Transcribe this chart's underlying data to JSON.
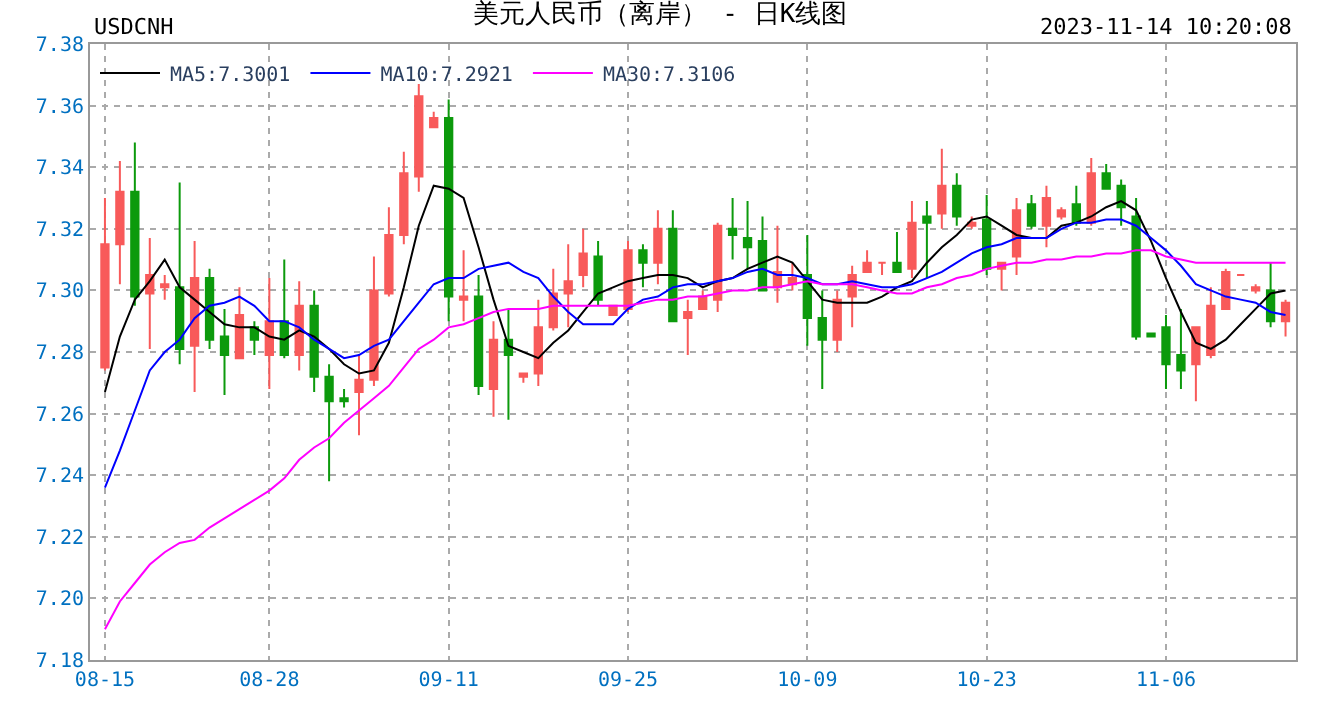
{
  "chart_data": {
    "type": "candlestick",
    "title": "美元人民币（离岸） - 日K线图",
    "annotations": [
      "USDCNH",
      "2023-11-14 10:20:08"
    ],
    "categories": [
      "08-15",
      null,
      null,
      null,
      null,
      null,
      null,
      null,
      null,
      null,
      null,
      "08-28",
      null,
      null,
      null,
      null,
      null,
      null,
      null,
      null,
      null,
      null,
      null,
      "09-11",
      null,
      null,
      null,
      null,
      null,
      null,
      null,
      null,
      null,
      null,
      null,
      "09-25",
      null,
      null,
      null,
      null,
      null,
      null,
      null,
      null,
      null,
      null,
      null,
      "10-09",
      null,
      null,
      null,
      null,
      null,
      null,
      null,
      null,
      null,
      null,
      null,
      "10-23",
      null,
      null,
      null,
      null,
      null,
      null,
      null,
      null,
      null,
      null,
      null,
      "11-06",
      null,
      null,
      null,
      null,
      null,
      null,
      null,
      null
    ],
    "ohlc": [
      [
        7.275,
        7.33,
        7.274,
        7.315
      ],
      [
        7.315,
        7.342,
        7.302,
        7.332
      ],
      [
        7.332,
        7.348,
        7.295,
        7.298
      ],
      [
        7.299,
        7.317,
        7.281,
        7.305
      ],
      [
        7.301,
        7.305,
        7.297,
        7.302
      ],
      [
        7.301,
        7.335,
        7.276,
        7.281
      ],
      [
        7.282,
        7.316,
        7.267,
        7.304
      ],
      [
        7.304,
        7.307,
        7.281,
        7.284
      ],
      [
        7.285,
        7.294,
        7.266,
        7.279
      ],
      [
        7.278,
        7.301,
        7.278,
        7.292
      ],
      [
        7.288,
        7.29,
        7.279,
        7.284
      ],
      [
        7.279,
        7.304,
        7.268,
        7.29
      ],
      [
        7.29,
        7.31,
        7.278,
        7.279
      ],
      [
        7.279,
        7.303,
        7.274,
        7.295
      ],
      [
        7.295,
        7.3,
        7.267,
        7.272
      ],
      [
        7.272,
        7.276,
        7.238,
        7.264
      ],
      [
        7.265,
        7.268,
        7.262,
        7.264
      ],
      [
        7.267,
        7.279,
        7.253,
        7.271
      ],
      [
        7.271,
        7.311,
        7.269,
        7.3
      ],
      [
        7.299,
        7.327,
        7.298,
        7.318
      ],
      [
        7.318,
        7.345,
        7.315,
        7.338
      ],
      [
        7.337,
        7.367,
        7.332,
        7.363
      ],
      [
        7.353,
        7.358,
        7.353,
        7.356
      ],
      [
        7.356,
        7.362,
        7.29,
        7.298
      ],
      [
        7.297,
        7.313,
        7.29,
        7.298
      ],
      [
        7.298,
        7.305,
        7.266,
        7.269
      ],
      [
        7.268,
        7.29,
        7.259,
        7.284
      ],
      [
        7.284,
        7.294,
        7.258,
        7.279
      ],
      [
        7.272,
        7.273,
        7.27,
        7.273
      ],
      [
        7.273,
        7.297,
        7.269,
        7.288
      ],
      [
        7.288,
        7.307,
        7.287,
        7.299
      ],
      [
        7.299,
        7.315,
        7.288,
        7.303
      ],
      [
        7.305,
        7.32,
        7.301,
        7.312
      ],
      [
        7.311,
        7.316,
        7.295,
        7.297
      ],
      [
        7.292,
        7.295,
        7.292,
        7.295
      ],
      [
        7.294,
        7.316,
        7.293,
        7.313
      ],
      [
        7.313,
        7.315,
        7.301,
        7.309
      ],
      [
        7.309,
        7.326,
        7.302,
        7.32
      ],
      [
        7.32,
        7.326,
        7.29,
        7.29
      ],
      [
        7.291,
        7.297,
        7.279,
        7.293
      ],
      [
        7.294,
        7.3,
        7.294,
        7.298
      ],
      [
        7.297,
        7.322,
        7.293,
        7.321
      ],
      [
        7.32,
        7.33,
        7.31,
        7.318
      ],
      [
        7.317,
        7.329,
        7.307,
        7.314
      ],
      [
        7.316,
        7.324,
        7.3,
        7.3
      ],
      [
        7.301,
        7.321,
        7.296,
        7.306
      ],
      [
        7.302,
        7.309,
        7.3,
        7.304
      ],
      [
        7.305,
        7.318,
        7.282,
        7.291
      ],
      [
        7.291,
        7.3,
        7.268,
        7.284
      ],
      [
        7.284,
        7.3,
        7.28,
        7.297
      ],
      [
        7.298,
        7.308,
        7.288,
        7.305
      ],
      [
        7.306,
        7.313,
        7.306,
        7.309
      ],
      [
        7.309,
        7.309,
        7.305,
        7.309
      ],
      [
        7.309,
        7.319,
        7.306,
        7.306
      ],
      [
        7.307,
        7.329,
        7.304,
        7.322
      ],
      [
        7.324,
        7.329,
        7.304,
        7.322
      ],
      [
        7.325,
        7.346,
        7.32,
        7.334
      ],
      [
        7.334,
        7.338,
        7.321,
        7.324
      ],
      [
        7.321,
        7.324,
        7.32,
        7.322
      ],
      [
        7.323,
        7.331,
        7.305,
        7.307
      ],
      [
        7.307,
        7.309,
        7.3,
        7.309
      ],
      [
        7.311,
        7.33,
        7.305,
        7.326
      ],
      [
        7.328,
        7.331,
        7.32,
        7.321
      ],
      [
        7.321,
        7.334,
        7.314,
        7.33
      ],
      [
        7.324,
        7.327,
        7.323,
        7.326
      ],
      [
        7.328,
        7.334,
        7.321,
        7.322
      ],
      [
        7.322,
        7.343,
        7.321,
        7.338
      ],
      [
        7.338,
        7.341,
        7.333,
        7.333
      ],
      [
        7.334,
        7.336,
        7.321,
        7.327
      ],
      [
        7.324,
        7.33,
        7.284,
        7.285
      ],
      [
        7.286,
        7.286,
        7.285,
        7.285
      ],
      [
        7.288,
        7.292,
        7.268,
        7.276
      ],
      [
        7.279,
        7.294,
        7.268,
        7.274
      ],
      [
        7.276,
        7.288,
        7.264,
        7.288
      ],
      [
        7.279,
        7.301,
        7.278,
        7.295
      ],
      [
        7.294,
        7.307,
        7.294,
        7.306
      ],
      [
        7.305,
        7.305,
        7.305,
        7.305
      ],
      [
        7.3,
        7.302,
        7.299,
        7.301
      ],
      [
        7.3,
        7.309,
        7.288,
        7.29
      ],
      [
        7.29,
        7.297,
        7.285,
        7.296
      ]
    ],
    "colors": [
      "#f85a5a",
      "#f85a5a",
      "#0c9a0c",
      "#f85a5a",
      "#f85a5a",
      "#0c9a0c",
      "#f85a5a",
      "#0c9a0c",
      "#0c9a0c",
      "#f85a5a",
      "#0c9a0c",
      "#f85a5a",
      "#0c9a0c",
      "#f85a5a",
      "#0c9a0c",
      "#0c9a0c",
      "#0c9a0c",
      "#f85a5a",
      "#f85a5a",
      "#f85a5a",
      "#f85a5a",
      "#f85a5a",
      "#f85a5a",
      "#0c9a0c",
      "#f85a5a",
      "#0c9a0c",
      "#f85a5a",
      "#0c9a0c",
      "#f85a5a",
      "#f85a5a",
      "#f85a5a",
      "#f85a5a",
      "#f85a5a",
      "#0c9a0c",
      "#f85a5a",
      "#f85a5a",
      "#0c9a0c",
      "#f85a5a",
      "#0c9a0c",
      "#f85a5a",
      "#f85a5a",
      "#f85a5a",
      "#0c9a0c",
      "#0c9a0c",
      "#0c9a0c",
      "#f85a5a",
      "#f85a5a",
      "#0c9a0c",
      "#0c9a0c",
      "#f85a5a",
      "#f85a5a",
      "#f85a5a",
      "#f85a5a",
      "#0c9a0c",
      "#f85a5a",
      "#0c9a0c",
      "#f85a5a",
      "#0c9a0c",
      "#f85a5a",
      "#0c9a0c",
      "#f85a5a",
      "#f85a5a",
      "#0c9a0c",
      "#f85a5a",
      "#f85a5a",
      "#0c9a0c",
      "#f85a5a",
      "#0c9a0c",
      "#0c9a0c",
      "#0c9a0c",
      "#0c9a0c",
      "#0c9a0c",
      "#0c9a0c",
      "#f85a5a",
      "#f85a5a",
      "#f85a5a",
      "#f85a5a",
      "#f85a5a",
      "#0c9a0c",
      "#f85a5a"
    ],
    "series": [
      {
        "type": "line",
        "name": "MA5:7.3001",
        "color": "#000000",
        "values": [
          7.267,
          7.285,
          7.297,
          7.303,
          7.31,
          7.301,
          7.297,
          7.293,
          7.289,
          7.288,
          7.288,
          7.285,
          7.284,
          7.287,
          7.285,
          7.281,
          7.276,
          7.273,
          7.274,
          7.283,
          7.301,
          7.321,
          7.334,
          7.333,
          7.33,
          7.314,
          7.297,
          7.282,
          7.28,
          7.278,
          7.283,
          7.287,
          7.293,
          7.299,
          7.301,
          7.303,
          7.304,
          7.305,
          7.305,
          7.304,
          7.301,
          7.303,
          7.304,
          7.307,
          7.309,
          7.311,
          7.309,
          7.303,
          7.297,
          7.296,
          7.296,
          7.296,
          7.298,
          7.301,
          7.303,
          7.309,
          7.314,
          7.318,
          7.323,
          7.324,
          7.321,
          7.318,
          7.317,
          7.317,
          7.321,
          7.322,
          7.324,
          7.327,
          7.329,
          7.326,
          7.316,
          7.304,
          7.293,
          7.283,
          7.281,
          7.284,
          7.289,
          7.294,
          7.299,
          7.3
        ]
      },
      {
        "type": "line",
        "name": "MA10:7.2921",
        "color": "#0000ff",
        "values": [
          7.236,
          7.248,
          7.261,
          7.274,
          7.28,
          7.284,
          7.291,
          7.295,
          7.296,
          7.298,
          7.295,
          7.29,
          7.29,
          7.288,
          7.284,
          7.281,
          7.278,
          7.279,
          7.282,
          7.284,
          7.29,
          7.296,
          7.302,
          7.304,
          7.304,
          7.307,
          7.308,
          7.309,
          7.306,
          7.304,
          7.298,
          7.293,
          7.289,
          7.289,
          7.289,
          7.294,
          7.297,
          7.298,
          7.301,
          7.302,
          7.302,
          7.303,
          7.304,
          7.306,
          7.307,
          7.305,
          7.305,
          7.304,
          7.302,
          7.302,
          7.303,
          7.302,
          7.301,
          7.301,
          7.302,
          7.304,
          7.306,
          7.309,
          7.312,
          7.314,
          7.315,
          7.317,
          7.317,
          7.317,
          7.32,
          7.322,
          7.322,
          7.323,
          7.323,
          7.321,
          7.317,
          7.313,
          7.308,
          7.302,
          7.3,
          7.298,
          7.297,
          7.296,
          7.293,
          7.292
        ]
      },
      {
        "type": "line",
        "name": "MA30:7.3106",
        "color": "#ff00ff",
        "values": [
          7.19,
          7.199,
          7.205,
          7.211,
          7.215,
          7.218,
          7.219,
          7.223,
          7.226,
          7.229,
          7.232,
          7.235,
          7.239,
          7.245,
          7.249,
          7.252,
          7.257,
          7.261,
          7.265,
          7.269,
          7.275,
          7.281,
          7.284,
          7.288,
          7.289,
          7.291,
          7.293,
          7.294,
          7.294,
          7.294,
          7.295,
          7.295,
          7.295,
          7.295,
          7.295,
          7.295,
          7.296,
          7.297,
          7.297,
          7.298,
          7.298,
          7.299,
          7.3,
          7.3,
          7.301,
          7.301,
          7.302,
          7.303,
          7.302,
          7.302,
          7.302,
          7.301,
          7.3,
          7.299,
          7.299,
          7.301,
          7.302,
          7.304,
          7.305,
          7.307,
          7.308,
          7.309,
          7.309,
          7.31,
          7.31,
          7.311,
          7.311,
          7.312,
          7.312,
          7.313,
          7.313,
          7.311,
          7.31,
          7.309,
          7.309,
          7.309,
          7.309,
          7.309,
          7.309,
          7.309
        ]
      }
    ],
    "ylim": [
      7.18,
      7.38
    ],
    "yticks": [
      {
        "value": 7.18,
        "label": "7.18"
      },
      {
        "value": 7.2,
        "label": "7.20"
      },
      {
        "value": 7.22,
        "label": "7.22"
      },
      {
        "value": 7.24,
        "label": "7.24"
      },
      {
        "value": 7.26,
        "label": "7.26"
      },
      {
        "value": 7.28,
        "label": "7.28"
      },
      {
        "value": 7.3,
        "label": "7.30"
      },
      {
        "value": 7.32,
        "label": "7.32"
      },
      {
        "value": 7.34,
        "label": "7.34"
      },
      {
        "value": 7.36,
        "label": "7.36"
      },
      {
        "value": 7.38,
        "label": "7.38"
      }
    ],
    "grid": true,
    "legend": "top left",
    "marker": "none",
    "line_style": "solid"
  }
}
